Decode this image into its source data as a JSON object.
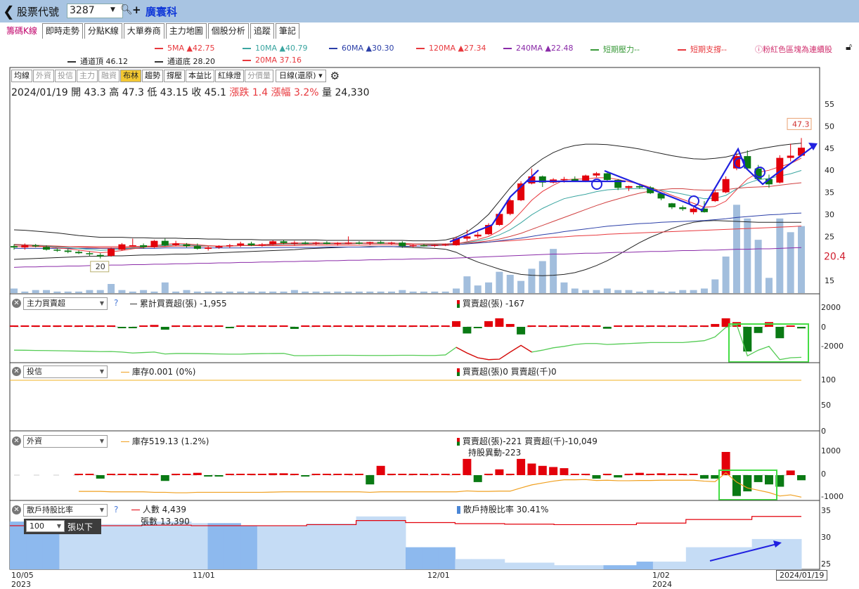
{
  "header": {
    "label": "股票代號",
    "code": "3287",
    "name": "廣寰科"
  },
  "tabs": [
    "籌碼K線",
    "即時走勢",
    "分點K線",
    "大單券商",
    "主力地圖",
    "個股分析",
    "追蹤",
    "筆記"
  ],
  "ma_legend": [
    {
      "label": "5MA ▲42.75",
      "color": "#e8383d"
    },
    {
      "label": "10MA ▲40.79",
      "color": "#3aa5a0"
    },
    {
      "label": "60MA ▲30.30",
      "color": "#2b3fa8"
    },
    {
      "label": "120MA ▲27.34",
      "color": "#e8383d"
    },
    {
      "label": "240MA ▲22.48",
      "color": "#8a2aa8"
    },
    {
      "label": "短期壓力--",
      "color": "#3a9a3a"
    },
    {
      "label": "短期支撐--",
      "color": "#e8383d"
    }
  ],
  "channel_legend": [
    {
      "label": "通道頂 46.12",
      "color": "#333333"
    },
    {
      "label": "通道底 28.20",
      "color": "#333333"
    },
    {
      "label": "20MA 37.16",
      "color": "#e8383d"
    }
  ],
  "note": "粉紅色區塊為連續股",
  "toolbar": {
    "buttons": [
      "均線",
      "外資",
      "投信",
      "主力",
      "融資",
      "布林",
      "趨勢",
      "撐壓",
      "本益比",
      "紅綠燈",
      "分價量"
    ],
    "period": "日線(還原)"
  },
  "ohlc": {
    "date": "2024/01/19",
    "open_label": "開",
    "open": "43.3",
    "high_label": "高",
    "high": "47.3",
    "low_label": "低",
    "low": "43.15",
    "close_label": "收",
    "close": "45.1",
    "chg_label": "漲跌",
    "chg": "1.4",
    "pct_label": "漲幅",
    "pct": "3.2%",
    "vol_label": "量",
    "vol": "24,330"
  },
  "price_axis": [
    "55",
    "50",
    "45",
    "40",
    "35",
    "30",
    "25",
    "20.4",
    "15"
  ],
  "max_label": "47.3",
  "min_label": "20",
  "panels": {
    "main_force": {
      "select": "主力買賣超",
      "cum_label": "累計買賣超(張) -1,955",
      "bar_label": "買賣超(張) -167",
      "axis": [
        "2000",
        "0",
        "-2000"
      ]
    },
    "trust": {
      "select": "投信",
      "stock_label": "庫存0.001 (0%)",
      "bar_label": "買賣超(張)0 買賣超(千)0",
      "axis": [
        "100",
        "50",
        "0"
      ]
    },
    "foreign": {
      "select": "外資",
      "stock_label": "庫存519.13 (1.2%)",
      "bar_label": "買賣超(張)-221 買賣超(千)-10,049",
      "change_label": "持股異動-223",
      "axis": [
        "1000",
        "0",
        "-1000"
      ]
    },
    "holders": {
      "select": "散戶持股比率",
      "people_label": "人數 4,439",
      "shares_label": "張數 13,390",
      "ratio_label": "散戶持股比率 30.41%",
      "lots_select": "100",
      "lots_suffix": "張以下",
      "axis": [
        "35",
        "30",
        "25"
      ]
    }
  },
  "date_axis": [
    {
      "label": "10/05",
      "year": "2023"
    },
    {
      "label": "11/01",
      "year": ""
    },
    {
      "label": "12/01",
      "year": ""
    },
    {
      "label": "1/02",
      "year": "2024"
    }
  ],
  "date_end": "2024/01/19",
  "chart_data": {
    "type": "candlestick",
    "candles": [
      [
        22.8,
        23.2,
        22.0,
        22.5
      ],
      [
        22.5,
        23.4,
        22.0,
        23.0
      ],
      [
        23.0,
        23.3,
        22.5,
        22.8
      ],
      [
        22.6,
        23.0,
        21.8,
        22.0
      ],
      [
        22.0,
        22.3,
        21.5,
        21.8
      ],
      [
        21.8,
        22.2,
        21.2,
        21.5
      ],
      [
        21.5,
        21.8,
        21.0,
        21.2
      ],
      [
        21.2,
        21.6,
        20.6,
        21.0
      ],
      [
        20.8,
        21.2,
        20.0,
        20.5
      ],
      [
        20.6,
        22.5,
        20.4,
        22.2
      ],
      [
        22.0,
        23.5,
        21.8,
        23.2
      ],
      [
        23.0,
        24.5,
        22.8,
        23.0
      ],
      [
        23.0,
        23.4,
        22.2,
        22.6
      ],
      [
        22.6,
        24.2,
        22.4,
        24.0
      ],
      [
        24.0,
        24.5,
        22.8,
        23.0
      ],
      [
        23.0,
        24.0,
        22.8,
        23.4
      ],
      [
        23.2,
        23.5,
        22.5,
        22.8
      ],
      [
        22.8,
        23.4,
        22.0,
        22.2
      ],
      [
        22.2,
        22.8,
        21.8,
        22.5
      ],
      [
        22.5,
        23.0,
        22.2,
        22.8
      ],
      [
        22.8,
        23.3,
        22.4,
        23.0
      ],
      [
        23.0,
        23.8,
        22.6,
        23.4
      ],
      [
        23.4,
        23.8,
        22.8,
        23.0
      ],
      [
        23.0,
        23.5,
        22.7,
        23.2
      ],
      [
        23.2,
        24.1,
        23.0,
        23.9
      ],
      [
        23.9,
        24.2,
        23.2,
        23.5
      ],
      [
        23.5,
        24.0,
        23.0,
        23.6
      ],
      [
        23.6,
        23.9,
        23.2,
        23.4
      ],
      [
        23.4,
        23.8,
        23.0,
        23.6
      ],
      [
        23.6,
        23.9,
        23.2,
        23.3
      ],
      [
        23.3,
        23.7,
        22.9,
        23.5
      ],
      [
        23.5,
        25.0,
        23.2,
        23.6
      ],
      [
        23.6,
        23.9,
        23.2,
        23.4
      ],
      [
        23.4,
        23.8,
        23.0,
        23.7
      ],
      [
        23.7,
        24.0,
        23.3,
        23.4
      ],
      [
        23.4,
        23.8,
        23.1,
        23.6
      ],
      [
        23.6,
        23.9,
        22.4,
        22.8
      ],
      [
        22.8,
        23.2,
        22.5,
        23.0
      ],
      [
        23.0,
        23.3,
        22.7,
        22.9
      ],
      [
        22.9,
        23.2,
        22.6,
        23.1
      ],
      [
        23.1,
        23.4,
        22.8,
        23.2
      ],
      [
        23.0,
        25.0,
        22.9,
        24.5
      ],
      [
        24.5,
        26.5,
        24.0,
        25.0
      ],
      [
        25.0,
        26.0,
        24.6,
        25.4
      ],
      [
        25.5,
        28.0,
        25.3,
        27.6
      ],
      [
        27.6,
        30.5,
        27.4,
        30.1
      ],
      [
        30.1,
        33.5,
        29.8,
        33.2
      ],
      [
        33.2,
        37.5,
        33.0,
        37.0
      ],
      [
        37.0,
        40.4,
        36.8,
        38.6
      ],
      [
        38.6,
        38.8,
        36.2,
        37.2
      ],
      [
        37.2,
        38.2,
        37.0,
        37.9
      ],
      [
        37.9,
        38.5,
        37.2,
        38.0
      ],
      [
        38.0,
        38.6,
        37.4,
        37.6
      ],
      [
        37.6,
        39.0,
        37.3,
        38.8
      ],
      [
        38.8,
        39.6,
        38.4,
        39.3
      ],
      [
        39.3,
        39.7,
        37.5,
        37.8
      ],
      [
        37.8,
        38.0,
        35.5,
        36.0
      ],
      [
        36.0,
        36.5,
        35.3,
        36.4
      ],
      [
        36.4,
        36.8,
        35.8,
        36.1
      ],
      [
        36.1,
        36.4,
        34.6,
        34.8
      ],
      [
        34.8,
        35.0,
        33.2,
        33.6
      ],
      [
        32.5,
        32.6,
        31.2,
        31.6
      ],
      [
        31.6,
        32.0,
        30.8,
        31.2
      ],
      [
        30.5,
        31.6,
        30.0,
        31.3
      ],
      [
        31.3,
        33.0,
        30.4,
        30.5
      ],
      [
        33.0,
        35.5,
        32.8,
        35.0
      ],
      [
        35.0,
        38.6,
        34.8,
        38.0
      ],
      [
        40.4,
        43.8,
        40.0,
        43.2
      ],
      [
        43.2,
        44.5,
        40.0,
        40.4
      ],
      [
        40.4,
        41.2,
        37.5,
        38.0
      ],
      [
        38.0,
        39.0,
        36.0,
        36.8
      ],
      [
        37.2,
        43.4,
        37.0,
        42.8
      ],
      [
        42.8,
        46.0,
        42.0,
        43.3
      ],
      [
        43.3,
        47.3,
        43.15,
        45.1
      ]
    ],
    "volume": [
      3,
      1,
      2,
      2,
      1,
      1,
      1,
      2,
      2,
      6,
      2,
      1,
      2,
      1,
      7,
      1,
      2,
      1,
      1,
      1,
      1,
      1,
      1,
      1,
      1,
      1,
      2,
      1,
      1,
      1,
      1,
      1,
      1,
      1,
      1,
      1,
      2,
      1,
      1,
      1,
      1,
      3,
      11,
      5,
      7,
      14,
      12,
      8,
      16,
      21,
      29,
      7,
      3,
      2,
      2,
      3,
      2,
      2,
      1,
      2,
      1,
      1,
      2,
      2,
      3,
      9,
      24,
      58,
      49,
      35,
      10,
      49,
      40,
      44
    ],
    "ma5": [
      23.0,
      23.0,
      22.9,
      22.7,
      22.4,
      22.2,
      21.9,
      21.6,
      21.3,
      21.5,
      21.8,
      22.2,
      22.5,
      22.9,
      23.2,
      23.4,
      23.3,
      23.1,
      22.9,
      22.8,
      22.8,
      22.9,
      23.0,
      23.1,
      23.3,
      23.4,
      23.5,
      23.5,
      23.5,
      23.5,
      23.5,
      23.5,
      23.5,
      23.5,
      23.5,
      23.5,
      23.4,
      23.3,
      23.1,
      23.0,
      23.0,
      23.3,
      23.8,
      24.3,
      25.0,
      26.3,
      28.0,
      30.5,
      33.2,
      35.2,
      36.6,
      37.8,
      38.0,
      38.0,
      38.3,
      38.3,
      37.9,
      37.4,
      36.9,
      36.1,
      35.3,
      34.3,
      33.4,
      32.5,
      31.6,
      31.8,
      33.0,
      35.6,
      38.0,
      39.5,
      40.0,
      40.8,
      41.5,
      42.75
    ],
    "ma20": [
      23.2,
      23.1,
      23.0,
      22.9,
      22.8,
      22.7,
      22.6,
      22.5,
      22.4,
      22.4,
      22.4,
      22.5,
      22.6,
      22.6,
      22.7,
      22.8,
      22.8,
      22.8,
      22.8,
      22.8,
      22.8,
      22.9,
      23.0,
      23.0,
      23.1,
      23.2,
      23.2,
      23.2,
      23.3,
      23.3,
      23.3,
      23.3,
      23.4,
      23.4,
      23.4,
      23.4,
      23.3,
      23.3,
      23.3,
      23.3,
      23.3,
      23.4,
      23.5,
      23.7,
      24.0,
      24.4,
      25.0,
      25.7,
      26.6,
      27.5,
      28.4,
      29.3,
      30.2,
      31.1,
      32.0,
      32.8,
      33.5,
      34.2,
      34.8,
      35.3,
      35.6,
      35.8,
      35.8,
      35.6,
      35.5,
      35.5,
      35.6,
      35.9,
      36.1,
      36.2,
      36.3,
      36.6,
      36.9,
      37.16
    ],
    "bb_top": [
      26.5,
      26.4,
      26.2,
      26.0,
      25.8,
      25.5,
      25.2,
      25.0,
      24.8,
      24.8,
      24.8,
      24.7,
      24.7,
      24.6,
      24.6,
      24.6,
      24.5,
      24.5,
      24.4,
      24.4,
      24.3,
      24.3,
      24.3,
      24.2,
      24.2,
      24.2,
      24.2,
      24.2,
      24.2,
      24.1,
      24.1,
      24.1,
      24.1,
      24.1,
      24.1,
      24.1,
      24.1,
      24.0,
      24.0,
      24.0,
      24.2,
      24.8,
      26.0,
      27.8,
      30.0,
      33.0,
      36.0,
      38.6,
      40.8,
      42.6,
      44.0,
      45.0,
      45.6,
      45.9,
      45.9,
      45.8,
      45.5,
      45.2,
      44.8,
      44.3,
      43.8,
      43.3,
      42.9,
      42.6,
      42.5,
      42.7,
      43.0,
      43.6,
      44.2,
      44.8,
      45.2,
      45.6,
      45.9,
      46.12
    ],
    "bb_bot": [
      19.8,
      19.9,
      20.0,
      20.1,
      20.2,
      20.3,
      20.4,
      20.5,
      20.5,
      20.6,
      20.6,
      20.7,
      20.8,
      20.8,
      20.9,
      21.0,
      21.0,
      21.1,
      21.2,
      21.3,
      21.4,
      21.5,
      21.6,
      21.7,
      21.8,
      21.9,
      22.0,
      22.2,
      22.3,
      22.4,
      22.5,
      22.6,
      22.6,
      22.7,
      22.7,
      22.7,
      22.6,
      22.5,
      22.4,
      22.3,
      22.1,
      21.4,
      20.2,
      19.2,
      18.4,
      17.6,
      16.9,
      16.4,
      16.2,
      16.1,
      16.2,
      16.4,
      16.8,
      17.5,
      18.4,
      19.5,
      20.8,
      22.2,
      23.6,
      24.8,
      25.8,
      26.8,
      27.6,
      28.2,
      28.5,
      28.6,
      28.5,
      28.4,
      28.3,
      28.2,
      28.2,
      28.2,
      28.2,
      28.2
    ],
    "ma60": [
      22.3,
      22.3,
      22.3,
      22.3,
      22.3,
      22.3,
      22.3,
      22.3,
      22.3,
      22.3,
      22.3,
      22.3,
      22.3,
      22.3,
      22.4,
      22.4,
      22.4,
      22.4,
      22.4,
      22.4,
      22.4,
      22.4,
      22.4,
      22.5,
      22.5,
      22.5,
      22.5,
      22.5,
      22.5,
      22.6,
      22.6,
      22.6,
      22.6,
      22.6,
      22.7,
      22.7,
      22.7,
      22.8,
      22.8,
      22.9,
      23.0,
      23.1,
      23.3,
      23.5,
      23.7,
      24.0,
      24.3,
      24.6,
      25.0,
      25.4,
      25.7,
      26.1,
      26.4,
      26.7,
      27.0,
      27.3,
      27.5,
      27.7,
      27.9,
      28.0,
      28.2,
      28.3,
      28.4,
      28.5,
      28.6,
      28.8,
      29.0,
      29.3,
      29.5,
      29.7,
      29.9,
      30.0,
      30.2,
      30.3
    ],
    "ma120": [
      22.7,
      22.7,
      22.7,
      22.7,
      22.7,
      22.7,
      22.7,
      22.7,
      22.7,
      22.7,
      22.7,
      22.7,
      22.8,
      22.8,
      22.8,
      22.8,
      22.8,
      22.8,
      22.8,
      22.8,
      22.8,
      22.9,
      22.9,
      22.9,
      22.9,
      22.9,
      22.9,
      23.0,
      23.0,
      23.0,
      23.0,
      23.0,
      23.0,
      23.1,
      23.1,
      23.1,
      23.1,
      23.2,
      23.2,
      23.2,
      23.3,
      23.4,
      23.5,
      23.6,
      23.7,
      23.9,
      24.0,
      24.2,
      24.4,
      24.6,
      24.8,
      24.9,
      25.1,
      25.2,
      25.3,
      25.5,
      25.6,
      25.7,
      25.8,
      25.9,
      26.0,
      26.1,
      26.2,
      26.3,
      26.4,
      26.5,
      26.6,
      26.7,
      26.8,
      26.9,
      27.0,
      27.1,
      27.2,
      27.34
    ],
    "ma240": [
      18.0,
      18.1,
      18.1,
      18.2,
      18.2,
      18.3,
      18.3,
      18.4,
      18.4,
      18.5,
      18.5,
      18.6,
      18.6,
      18.7,
      18.7,
      18.8,
      18.8,
      18.9,
      18.9,
      19.0,
      19.0,
      19.1,
      19.1,
      19.2,
      19.2,
      19.3,
      19.3,
      19.4,
      19.4,
      19.5,
      19.5,
      19.6,
      19.6,
      19.7,
      19.7,
      19.8,
      19.8,
      19.9,
      19.9,
      20.0,
      20.0,
      20.1,
      20.2,
      20.3,
      20.4,
      20.5,
      20.6,
      20.7,
      20.8,
      20.9,
      21.0,
      21.0,
      21.1,
      21.2,
      21.2,
      21.3,
      21.4,
      21.4,
      21.5,
      21.6,
      21.6,
      21.7,
      21.8,
      21.8,
      21.9,
      21.9,
      22.0,
      22.1,
      22.1,
      22.2,
      22.2,
      22.3,
      22.4,
      22.48
    ],
    "main_force_bars": [
      50,
      0,
      0,
      50,
      0,
      0,
      0,
      0,
      0,
      100,
      -100,
      -120,
      100,
      200,
      -300,
      50,
      0,
      0,
      0,
      0,
      -40,
      0,
      0,
      0,
      0,
      0,
      -220,
      0,
      0,
      0,
      0,
      0,
      0,
      0,
      0,
      0,
      0,
      0,
      0,
      0,
      50,
      600,
      -700,
      -100,
      600,
      900,
      300,
      -800,
      150,
      150,
      0,
      50,
      50,
      0,
      0,
      -200,
      0,
      0,
      0,
      0,
      0,
      0,
      0,
      50,
      80,
      300,
      900,
      500,
      -2600,
      -650,
      500,
      -1200,
      80,
      -167
    ],
    "main_force_cum": [
      -1200,
      -1210,
      -1230,
      -1240,
      -1260,
      -1280,
      -1300,
      -1320,
      -1350,
      -1340,
      -1400,
      -1500,
      -1450,
      -1400,
      -1600,
      -1550,
      -1550,
      -1560,
      -1580,
      -1600,
      -1620,
      -1620,
      -1580,
      -1560,
      -1550,
      -1540,
      -1780,
      -1780,
      -1760,
      -1750,
      -1740,
      -1740,
      -1750,
      -1760,
      -1760,
      -1750,
      -1740,
      -1740,
      -1760,
      -1760,
      -1700,
      -900,
      -1500,
      -2000,
      -2200,
      -2150,
      -1400,
      -700,
      -1400,
      -1200,
      -950,
      -800,
      -600,
      -500,
      -500,
      -600,
      -550,
      -500,
      -450,
      -400,
      -400,
      -400,
      -400,
      -300,
      -200,
      200,
      1200,
      1500,
      -1800,
      -1200,
      -800,
      -2200,
      -2000,
      -1955
    ],
    "foreign_bars": [
      0,
      0,
      -150,
      0,
      0,
      0,
      0,
      0,
      -250,
      0,
      50,
      100,
      -60,
      -30,
      0,
      0,
      0,
      0,
      80,
      80,
      50,
      -60,
      0,
      0,
      0,
      50,
      0,
      -400,
      400,
      50,
      0,
      0,
      0,
      0,
      0,
      0,
      700,
      -300,
      0,
      250,
      0,
      700,
      500,
      400,
      350,
      300,
      30,
      50,
      -150,
      60,
      -100,
      0,
      100,
      0,
      80,
      0,
      0,
      0,
      -150,
      -150,
      1000,
      -900,
      -700,
      -300,
      -400,
      -500,
      200,
      -221
    ],
    "foreign_stock": [
      -700,
      -700,
      -700,
      -720,
      -720,
      -720,
      -720,
      -740,
      -740,
      -760,
      -760,
      -740,
      -740,
      -740,
      -740,
      -740,
      -740,
      -740,
      -730,
      -720,
      -720,
      -720,
      -720,
      -720,
      -720,
      -720,
      -720,
      -740,
      -720,
      -720,
      -720,
      -720,
      -720,
      -720,
      -720,
      -720,
      -680,
      -700,
      -700,
      -690,
      -690,
      -550,
      -420,
      -340,
      -260,
      -200,
      -200,
      -190,
      -230,
      -220,
      -240,
      -240,
      -230,
      -230,
      -220,
      -220,
      -220,
      -220,
      -260,
      -280,
      100,
      -300,
      -550,
      -650,
      -750,
      -900,
      -850,
      -950
    ],
    "holders_ratio": [
      33.8,
      33.8,
      33.8,
      33.8,
      33.3,
      33.3,
      33.3,
      33.3,
      33.8,
      33.8,
      33.8,
      33.5,
      33.5,
      33.5,
      33.0,
      33.0,
      33.0,
      33.0,
      33.4,
      33.4,
      33.4,
      34.8,
      34.8,
      34.8,
      28.8,
      28.8,
      28.8,
      26.5,
      26.5,
      26.5,
      25.8,
      25.8,
      25.8,
      25.3,
      25.3,
      25.3,
      25.3,
      25.3,
      26.0,
      26.0,
      26.0,
      28.8,
      28.8,
      28.8,
      28.8,
      30.4,
      30.4,
      30.4
    ],
    "people_line": [
      33.0,
      33.0,
      33.0,
      33.0,
      33.0,
      33.0,
      33.0,
      33.0,
      33.1,
      33.1,
      33.1,
      33.0,
      33.0,
      33.0,
      33.0,
      33.0,
      33.0,
      33.0,
      33.2,
      33.2,
      33.2,
      34.0,
      34.0,
      34.0,
      33.6,
      33.6,
      33.6,
      33.4,
      33.4,
      33.4,
      33.3,
      33.3,
      33.3,
      33.2,
      33.2,
      33.2,
      33.2,
      33.2,
      33.5,
      33.5,
      33.5,
      34.2,
      34.2,
      34.2,
      34.2,
      34.8,
      34.8,
      34.8
    ]
  }
}
